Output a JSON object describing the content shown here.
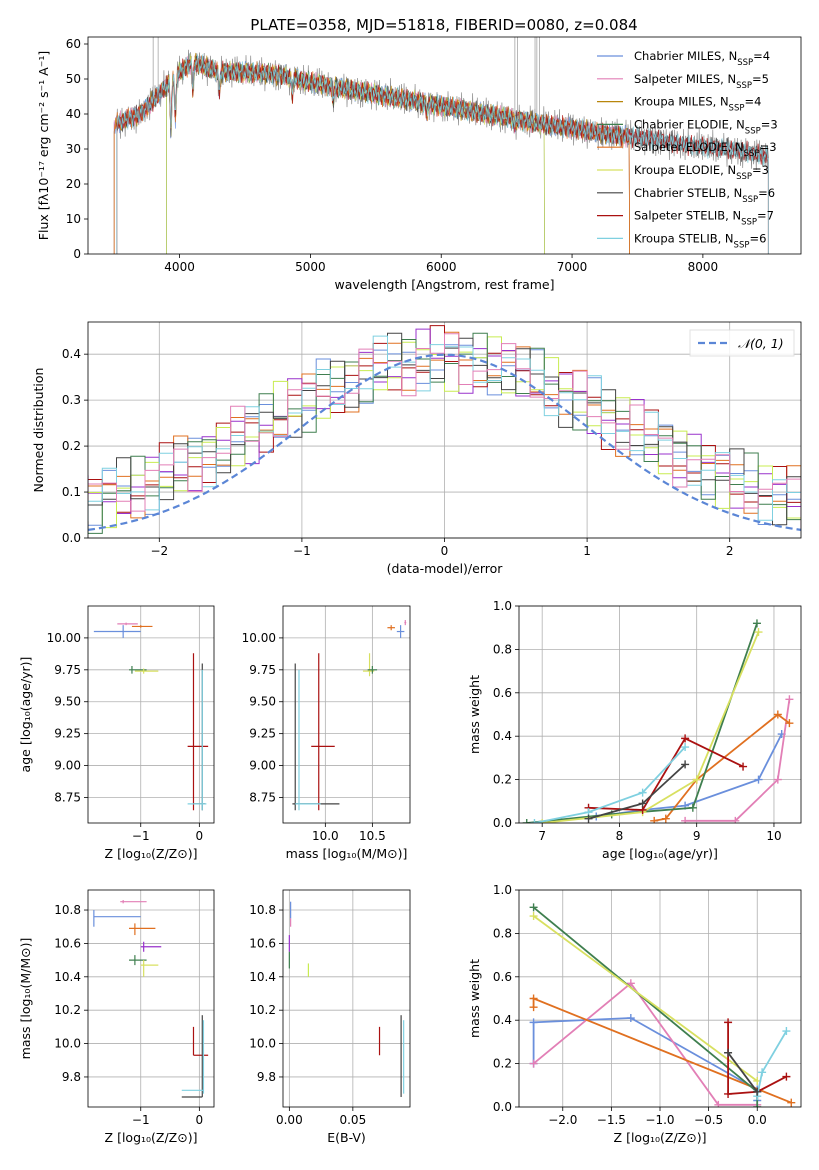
{
  "title": "PLATE=0358, MJD=51818, FIBERID=0080, z=0.084",
  "colors": {
    "Chabrier MILES": "#6a8fdc",
    "Salpeter MILES": "#e27fb6",
    "Kroupa MILES": "#b8860b",
    "Chabrier ELODIE": "#3f7f4f",
    "Salpeter ELODIE": "#e07020",
    "Kroupa ELODIE": "#d8e060",
    "Chabrier STELIB": "#444444",
    "Salpeter STELIB": "#aa1111",
    "Kroupa STELIB": "#7fd0e0",
    "purple": "#9932cc",
    "lime": "#c8ec50",
    "gauss": "#5b86d6"
  },
  "chart_data": [
    {
      "type": "line",
      "panel": "spectrum",
      "xlabel": "wavelength [Angstrom, rest frame]",
      "ylabel": "Flux [fλ10⁻¹⁷ erg cm⁻² s⁻¹ A⁻¹]",
      "xlim": [
        3300,
        8750
      ],
      "ylim": [
        0,
        62
      ],
      "xticks": [
        4000,
        5000,
        6000,
        7000,
        8000
      ],
      "yticks": [
        0,
        10,
        20,
        30,
        40,
        50,
        60
      ],
      "legend_position": "top-right",
      "legend": [
        {
          "name": "Chabrier MILES",
          "nssp": "4"
        },
        {
          "name": "Salpeter MILES",
          "nssp": "5"
        },
        {
          "name": "Kroupa MILES",
          "nssp": "4"
        },
        {
          "name": "Chabrier ELODIE",
          "nssp": "3"
        },
        {
          "name": "Salpeter ELODIE",
          "nssp": "3"
        },
        {
          "name": "Kroupa ELODIE",
          "nssp": "3"
        },
        {
          "name": "Chabrier STELIB",
          "nssp": "6"
        },
        {
          "name": "Salpeter STELIB",
          "nssp": "7"
        },
        {
          "name": "Kroupa STELIB",
          "nssp": "6"
        }
      ],
      "continuum": {
        "x": [
          3500,
          3700,
          3850,
          4000,
          4100,
          4300,
          4500,
          4800,
          5000,
          5300,
          5600,
          5900,
          6200,
          6500,
          6800,
          7000,
          7300,
          7600,
          7900,
          8200,
          8500
        ],
        "y": [
          37,
          40,
          46,
          52,
          55,
          52,
          52,
          51,
          49,
          47,
          45,
          43,
          41,
          39,
          37,
          36,
          34,
          33,
          31,
          30,
          28
        ]
      },
      "data_spikes_x": [
        3798,
        3836,
        6563,
        6584,
        6717,
        6731,
        6750
      ]
    },
    {
      "type": "histogram",
      "panel": "residuals",
      "xlabel": "(data-model)/error",
      "ylabel": "Normed distribution",
      "xlim": [
        -2.5,
        2.5
      ],
      "ylim": [
        0,
        0.47
      ],
      "xticks": [
        -2,
        -1,
        0,
        1,
        2
      ],
      "yticks": [
        0.0,
        0.1,
        0.2,
        0.3,
        0.4
      ],
      "legend": [
        "𝒩(0, 1)"
      ],
      "legend_position": "top-right",
      "bin_width": 0.1,
      "series_count": 9,
      "gaussian": {
        "mean": 0,
        "sigma": 1
      }
    },
    {
      "type": "scatter",
      "panel": "age-Z",
      "xlabel": "Z [log₁₀(Z/Z⊙)]",
      "ylabel": "age  [log₁₀(age/yr)]",
      "xlim": [
        -1.9,
        0.25
      ],
      "ylim": [
        8.55,
        10.25
      ],
      "xticks": [
        -1,
        0
      ],
      "yticks": [
        8.75,
        9.0,
        9.25,
        9.5,
        9.75,
        10.0
      ],
      "points": [
        {
          "s": "Chabrier MILES",
          "x": -1.3,
          "y": 10.05,
          "xlo": -1.8,
          "xhi": -1.0,
          "ylo": 10.0,
          "yhi": 10.1
        },
        {
          "s": "Salpeter MILES",
          "x": -1.25,
          "y": 10.11,
          "xlo": -1.4,
          "xhi": -1.05,
          "ylo": 10.1,
          "yhi": 10.12
        },
        {
          "s": "Salpeter ELODIE",
          "x": -1.0,
          "y": 10.09,
          "xlo": -1.15,
          "xhi": -0.8,
          "ylo": 10.08,
          "yhi": 10.1
        },
        {
          "s": "Chabrier ELODIE",
          "x": -1.15,
          "y": 9.75,
          "xlo": -1.2,
          "xhi": -0.9,
          "ylo": 9.72,
          "yhi": 9.78
        },
        {
          "s": "Kroupa ELODIE",
          "x": -0.95,
          "y": 9.74,
          "xlo": -1.1,
          "xhi": -0.7,
          "ylo": 9.72,
          "yhi": 9.76
        },
        {
          "s": "Salpeter STELIB",
          "x": -0.1,
          "y": 9.15,
          "xlo": -0.2,
          "xhi": 0.15,
          "ylo": 8.65,
          "yhi": 9.88
        },
        {
          "s": "Chabrier STELIB",
          "x": 0.05,
          "y": 8.7,
          "xlo": -0.1,
          "xhi": 0.1,
          "ylo": 8.65,
          "yhi": 9.8
        },
        {
          "s": "Kroupa STELIB",
          "x": 0.05,
          "y": 8.7,
          "xlo": -0.2,
          "xhi": 0.12,
          "ylo": 8.65,
          "yhi": 9.75
        }
      ]
    },
    {
      "type": "scatter",
      "panel": "age-mass",
      "xlabel": "mass [log₁₀(M/M⊙)]",
      "ylabel": "",
      "xlim": [
        9.55,
        10.9
      ],
      "ylim": [
        8.55,
        10.25
      ],
      "xticks": [
        10.0,
        10.5
      ],
      "yticks": [
        8.75,
        9.0,
        9.25,
        9.5,
        9.75,
        10.0
      ],
      "points": [
        {
          "s": "Salpeter ELODIE",
          "x": 10.7,
          "y": 10.08,
          "xlo": 10.66,
          "xhi": 10.74,
          "ylo": 10.06,
          "yhi": 10.1
        },
        {
          "s": "Chabrier MILES",
          "x": 10.8,
          "y": 10.05,
          "xlo": 10.76,
          "xhi": 10.84,
          "ylo": 10.0,
          "yhi": 10.1
        },
        {
          "s": "Salpeter MILES",
          "x": 10.85,
          "y": 10.12,
          "xlo": 10.84,
          "xhi": 10.86,
          "ylo": 10.1,
          "yhi": 10.14
        },
        {
          "s": "Kroupa ELODIE",
          "x": 10.47,
          "y": 9.74,
          "xlo": 10.4,
          "xhi": 10.52,
          "ylo": 9.7,
          "yhi": 9.88
        },
        {
          "s": "Chabrier ELODIE",
          "x": 10.5,
          "y": 9.75,
          "xlo": 10.45,
          "xhi": 10.55,
          "ylo": 9.72,
          "yhi": 9.78
        },
        {
          "s": "Salpeter STELIB",
          "x": 9.93,
          "y": 9.15,
          "xlo": 9.85,
          "xhi": 10.1,
          "ylo": 8.65,
          "yhi": 9.88
        },
        {
          "s": "Chabrier STELIB",
          "x": 9.68,
          "y": 8.7,
          "xlo": 9.65,
          "xhi": 10.15,
          "ylo": 8.65,
          "yhi": 9.8
        },
        {
          "s": "Kroupa STELIB",
          "x": 9.72,
          "y": 8.7,
          "xlo": 9.68,
          "xhi": 9.95,
          "ylo": 8.65,
          "yhi": 9.75
        }
      ]
    },
    {
      "type": "line",
      "panel": "weight-age",
      "xlabel": "age  [log₁₀(age/yr)]",
      "ylabel": "mass weight",
      "xlim": [
        6.7,
        10.35
      ],
      "ylim": [
        0,
        1
      ],
      "xticks": [
        7,
        8,
        9,
        10
      ],
      "yticks": [
        0.0,
        0.2,
        0.4,
        0.6,
        0.8,
        1.0
      ],
      "series": [
        {
          "name": "Chabrier MILES",
          "x": [
            7.7,
            8.3,
            8.85,
            9.8,
            10.1
          ],
          "y": [
            0.03,
            0.06,
            0.08,
            0.2,
            0.41
          ]
        },
        {
          "name": "Salpeter MILES",
          "x": [
            8.85,
            9.5,
            10.05,
            10.2
          ],
          "y": [
            0.01,
            0.01,
            0.2,
            0.57
          ]
        },
        {
          "name": "Salpeter ELODIE",
          "x": [
            8.45,
            8.6,
            9.0,
            10.05,
            10.2
          ],
          "y": [
            0.01,
            0.02,
            0.2,
            0.5,
            0.46
          ]
        },
        {
          "name": "Chabrier ELODIE",
          "x": [
            6.8,
            7.9,
            8.95,
            9.78
          ],
          "y": [
            0.0,
            0.04,
            0.07,
            0.92
          ]
        },
        {
          "name": "Kroupa ELODIE",
          "x": [
            7.0,
            8.3,
            9.0,
            9.8
          ],
          "y": [
            0.0,
            0.05,
            0.2,
            0.88
          ]
        },
        {
          "name": "Salpeter STELIB",
          "x": [
            7.6,
            8.3,
            8.85,
            9.6
          ],
          "y": [
            0.07,
            0.06,
            0.39,
            0.26
          ]
        },
        {
          "name": "Kroupa STELIB",
          "x": [
            6.9,
            7.6,
            8.3,
            8.85
          ],
          "y": [
            0.0,
            0.05,
            0.14,
            0.35
          ]
        },
        {
          "name": "Chabrier STELIB",
          "x": [
            7.6,
            8.3,
            8.85
          ],
          "y": [
            0.02,
            0.09,
            0.27
          ]
        }
      ]
    },
    {
      "type": "scatter",
      "panel": "mass-Z",
      "xlabel": "Z [log₁₀(Z/Z⊙)]",
      "ylabel": "mass [log₁₀(M/M⊙)]",
      "xlim": [
        -1.9,
        0.25
      ],
      "ylim": [
        9.62,
        10.92
      ],
      "xticks": [
        -1,
        0
      ],
      "yticks": [
        9.8,
        10.0,
        10.2,
        10.4,
        10.6,
        10.8
      ],
      "points": [
        {
          "s": "Salpeter MILES",
          "x": -1.3,
          "y": 10.85,
          "xlo": -1.35,
          "xhi": -0.9,
          "ylo": 10.84,
          "yhi": 10.86
        },
        {
          "s": "Chabrier MILES",
          "x": -1.8,
          "y": 10.76,
          "xlo": -1.8,
          "xhi": -1.0,
          "ylo": 10.7,
          "yhi": 10.8
        },
        {
          "s": "Salpeter ELODIE",
          "x": -1.1,
          "y": 10.69,
          "xlo": -1.2,
          "xhi": -0.75,
          "ylo": 10.65,
          "yhi": 10.72
        },
        {
          "s": "purple",
          "x": -0.95,
          "y": 10.58,
          "xlo": -1.0,
          "xhi": -0.65,
          "ylo": 10.55,
          "yhi": 10.61
        },
        {
          "s": "Chabrier ELODIE",
          "x": -1.1,
          "y": 10.5,
          "xlo": -1.2,
          "xhi": -0.9,
          "ylo": 10.47,
          "yhi": 10.53
        },
        {
          "s": "Kroupa ELODIE",
          "x": -0.95,
          "y": 10.47,
          "xlo": -1.0,
          "xhi": -0.7,
          "ylo": 10.4,
          "yhi": 10.5
        },
        {
          "s": "Salpeter STELIB",
          "x": -0.1,
          "y": 9.93,
          "xlo": -0.1,
          "xhi": 0.15,
          "ylo": 9.93,
          "yhi": 10.1
        },
        {
          "s": "Chabrier STELIB",
          "x": 0.05,
          "y": 9.68,
          "xlo": -0.3,
          "xhi": 0.05,
          "ylo": 9.68,
          "yhi": 10.17
        },
        {
          "s": "Kroupa STELIB",
          "x": 0.07,
          "y": 9.72,
          "xlo": -0.3,
          "xhi": 0.07,
          "ylo": 9.7,
          "yhi": 10.14
        }
      ]
    },
    {
      "type": "scatter",
      "panel": "mass-EBV",
      "xlabel": "E(B-V)",
      "ylabel": "",
      "xlim": [
        -0.005,
        0.095
      ],
      "ylim": [
        9.62,
        10.92
      ],
      "xticks": [
        0.0,
        0.05
      ],
      "yticks": [
        9.8,
        10.0,
        10.2,
        10.4,
        10.6,
        10.8
      ],
      "points": [
        {
          "s": "Chabrier MILES",
          "x": 0.001,
          "y": 10.8,
          "xlo": 0.001,
          "xhi": 0.001,
          "ylo": 10.75,
          "yhi": 10.85
        },
        {
          "s": "Salpeter MILES",
          "x": 0.001,
          "y": 10.72,
          "xlo": 0.001,
          "xhi": 0.001,
          "ylo": 10.7,
          "yhi": 10.75
        },
        {
          "s": "purple",
          "x": 0.0,
          "y": 10.6,
          "xlo": 0.0,
          "xhi": 0.0,
          "ylo": 10.55,
          "yhi": 10.65
        },
        {
          "s": "Chabrier ELODIE",
          "x": 0.0,
          "y": 10.5,
          "xlo": 0.0,
          "xhi": 0.0,
          "ylo": 10.45,
          "yhi": 10.55
        },
        {
          "s": "lime",
          "x": 0.015,
          "y": 10.42,
          "xlo": 0.015,
          "xhi": 0.015,
          "ylo": 10.4,
          "yhi": 10.48
        },
        {
          "s": "Salpeter STELIB",
          "x": 0.071,
          "y": 10.0,
          "xlo": 0.071,
          "xhi": 0.071,
          "ylo": 9.93,
          "yhi": 10.1
        },
        {
          "s": "Chabrier STELIB",
          "x": 0.088,
          "y": 9.9,
          "xlo": 0.088,
          "xhi": 0.088,
          "ylo": 9.68,
          "yhi": 10.17
        },
        {
          "s": "Kroupa STELIB",
          "x": 0.09,
          "y": 9.9,
          "xlo": 0.09,
          "xhi": 0.09,
          "ylo": 9.7,
          "yhi": 10.14
        }
      ]
    },
    {
      "type": "line",
      "panel": "weight-Z",
      "xlabel": "Z [log₁₀(Z/Z⊙)]",
      "ylabel": "mass weight",
      "xlim": [
        -2.45,
        0.45
      ],
      "ylim": [
        0,
        1
      ],
      "xticks": [
        -2.0,
        -1.5,
        -1.0,
        -0.5,
        0.0
      ],
      "yticks": [
        0.0,
        0.2,
        0.4,
        0.6,
        0.8,
        1.0
      ],
      "series": [
        {
          "name": "Chabrier MILES",
          "x": [
            -2.3,
            -2.3,
            -1.3,
            0.0,
            0.0
          ],
          "y": [
            0.2,
            0.39,
            0.41,
            0.08,
            0.03
          ]
        },
        {
          "name": "Salpeter MILES",
          "x": [
            -2.3,
            -1.3,
            -0.4,
            0.0
          ],
          "y": [
            0.2,
            0.57,
            0.01,
            0.01
          ]
        },
        {
          "name": "Salpeter ELODIE",
          "x": [
            -2.3,
            -2.3,
            0.35
          ],
          "y": [
            0.46,
            0.5,
            0.02
          ]
        },
        {
          "name": "Chabrier ELODIE",
          "x": [
            -2.3,
            0.0,
            0.0
          ],
          "y": [
            0.92,
            0.07,
            0.0
          ]
        },
        {
          "name": "Kroupa ELODIE",
          "x": [
            -2.3,
            0.0
          ],
          "y": [
            0.88,
            0.12
          ]
        },
        {
          "name": "Salpeter STELIB",
          "x": [
            -0.3,
            -0.3,
            0.0,
            0.3
          ],
          "y": [
            0.39,
            0.06,
            0.07,
            0.14
          ]
        },
        {
          "name": "Kroupa STELIB",
          "x": [
            0.0,
            0.05,
            0.3
          ],
          "y": [
            0.05,
            0.16,
            0.35
          ]
        },
        {
          "name": "Chabrier STELIB",
          "x": [
            -0.3,
            0.0
          ],
          "y": [
            0.25,
            0.07
          ]
        }
      ]
    }
  ]
}
